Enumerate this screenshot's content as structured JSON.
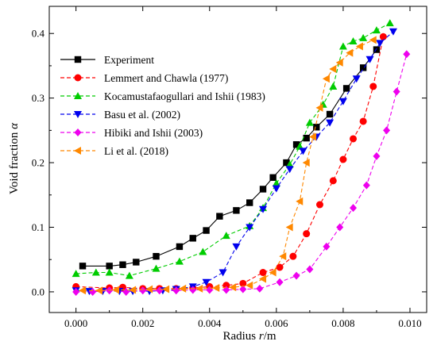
{
  "chart_data": {
    "type": "line",
    "xlabel": "Radius ",
    "xlabel_var": "r",
    "xlabel_unit": "/m",
    "ylabel": "Void fraction ",
    "ylabel_var": "α",
    "xlim": [
      -0.0008,
      0.0105
    ],
    "ylim": [
      -0.032,
      0.442
    ],
    "xticks": [
      0.0,
      0.002,
      0.004,
      0.006,
      0.008,
      0.01
    ],
    "xtick_labels": [
      "0.000",
      "0.002",
      "0.004",
      "0.006",
      "0.008",
      "0.010"
    ],
    "yticks": [
      0.0,
      0.1,
      0.2,
      0.3,
      0.4
    ],
    "ytick_labels": [
      "0.0",
      "0.1",
      "0.2",
      "0.3",
      "0.4"
    ],
    "legend_position": "top-left",
    "grid": false,
    "series": [
      {
        "name": "Experiment",
        "color": "#000000",
        "dash": "solid",
        "marker": "square",
        "x": [
          0.0002,
          0.001,
          0.0014,
          0.0018,
          0.0024,
          0.0031,
          0.0035,
          0.0039,
          0.0043,
          0.0048,
          0.0052,
          0.0056,
          0.0059,
          0.0063,
          0.0066,
          0.0069,
          0.0072,
          0.0076,
          0.0081,
          0.0086,
          0.009
        ],
        "y": [
          0.04,
          0.04,
          0.042,
          0.046,
          0.055,
          0.07,
          0.083,
          0.095,
          0.117,
          0.126,
          0.138,
          0.159,
          0.177,
          0.2,
          0.228,
          0.238,
          0.255,
          0.275,
          0.315,
          0.347,
          0.375
        ]
      },
      {
        "name": "Lemmert and Chawla (1977)",
        "color": "#ff0000",
        "dash": "dash",
        "marker": "circle",
        "x": [
          0.0,
          0.001,
          0.0014,
          0.002,
          0.0025,
          0.003,
          0.0035,
          0.004,
          0.0045,
          0.005,
          0.0056,
          0.0061,
          0.0065,
          0.0069,
          0.0073,
          0.0077,
          0.008,
          0.0083,
          0.0086,
          0.0089,
          0.0092
        ],
        "y": [
          0.008,
          0.006,
          0.007,
          0.005,
          0.005,
          0.005,
          0.006,
          0.008,
          0.01,
          0.013,
          0.03,
          0.038,
          0.055,
          0.09,
          0.135,
          0.172,
          0.205,
          0.237,
          0.264,
          0.318,
          0.395
        ]
      },
      {
        "name": "Kocamustafaogullari and Ishii (1983)",
        "color": "#00cc00",
        "dash": "dash",
        "marker": "triangle-up",
        "x": [
          0.0,
          0.0006,
          0.001,
          0.0016,
          0.0024,
          0.0031,
          0.0038,
          0.0045,
          0.0052,
          0.0056,
          0.006,
          0.0064,
          0.0067,
          0.007,
          0.0074,
          0.0077,
          0.008,
          0.0083,
          0.0086,
          0.009,
          0.0094
        ],
        "y": [
          0.028,
          0.03,
          0.03,
          0.025,
          0.036,
          0.047,
          0.062,
          0.087,
          0.102,
          0.13,
          0.168,
          0.197,
          0.225,
          0.262,
          0.29,
          0.318,
          0.38,
          0.388,
          0.393,
          0.405,
          0.416
        ]
      },
      {
        "name": "Basu et al. (2002)",
        "color": "#0000ee",
        "dash": "dash",
        "marker": "triangle-down",
        "x": [
          0.0,
          0.0004,
          0.0008,
          0.0013,
          0.0017,
          0.0022,
          0.0026,
          0.003,
          0.0035,
          0.0039,
          0.0044,
          0.0048,
          0.0052,
          0.0056,
          0.006,
          0.0064,
          0.0068,
          0.0072,
          0.0076,
          0.008,
          0.0084,
          0.0088,
          0.0091,
          0.0095
        ],
        "y": [
          0.002,
          0.001,
          0.001,
          0.001,
          0.001,
          0.001,
          0.002,
          0.004,
          0.008,
          0.015,
          0.03,
          0.07,
          0.1,
          0.128,
          0.16,
          0.19,
          0.218,
          0.24,
          0.262,
          0.295,
          0.33,
          0.36,
          0.385,
          0.403
        ]
      },
      {
        "name": "Hibiki and Ishii (2003)",
        "color": "#ee00ee",
        "dash": "dash",
        "marker": "diamond",
        "x": [
          0.0,
          0.0005,
          0.001,
          0.0015,
          0.002,
          0.0025,
          0.003,
          0.0035,
          0.004,
          0.0045,
          0.005,
          0.0055,
          0.0061,
          0.0066,
          0.007,
          0.0075,
          0.0079,
          0.0083,
          0.0087,
          0.009,
          0.0093,
          0.0096,
          0.0099
        ],
        "y": [
          0.0,
          0.0,
          0.002,
          0.0,
          0.002,
          0.002,
          0.002,
          0.003,
          0.003,
          0.003,
          0.004,
          0.005,
          0.015,
          0.025,
          0.035,
          0.07,
          0.1,
          0.13,
          0.165,
          0.21,
          0.25,
          0.31,
          0.368
        ]
      },
      {
        "name": "Li et al. (2018)",
        "color": "#ff8800",
        "dash": "dash",
        "marker": "triangle-left",
        "x": [
          0.0002,
          0.0007,
          0.0012,
          0.0017,
          0.0022,
          0.0027,
          0.0032,
          0.0037,
          0.0042,
          0.0047,
          0.0052,
          0.0056,
          0.0059,
          0.0062,
          0.0064,
          0.0067,
          0.0069,
          0.0071,
          0.0073,
          0.0075,
          0.0077,
          0.0079,
          0.0082,
          0.0085,
          0.0089
        ],
        "y": [
          0.002,
          0.002,
          0.003,
          0.003,
          0.004,
          0.004,
          0.005,
          0.005,
          0.006,
          0.007,
          0.01,
          0.02,
          0.03,
          0.055,
          0.1,
          0.14,
          0.2,
          0.24,
          0.285,
          0.33,
          0.345,
          0.355,
          0.37,
          0.38,
          0.39
        ]
      }
    ]
  }
}
